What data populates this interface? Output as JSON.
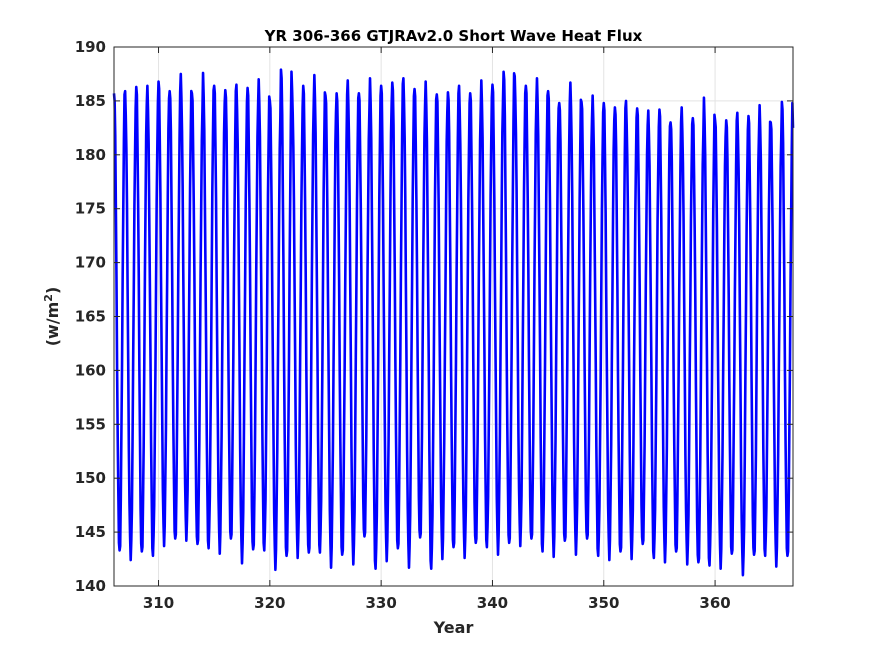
{
  "chart_data": {
    "type": "line",
    "title": "YR 306-366 GTJRAv2.0 Short Wave Heat Flux",
    "xlabel": "Year",
    "ylabel_main": "(w/m",
    "ylabel_sup": "2",
    "ylabel_close": ")",
    "xlim": [
      306,
      367
    ],
    "ylim": [
      140,
      190
    ],
    "xticks": [
      310,
      320,
      330,
      340,
      350,
      360
    ],
    "yticks": [
      140,
      145,
      150,
      155,
      160,
      165,
      170,
      175,
      180,
      185,
      190
    ],
    "grid": true,
    "line_color": "#0000ff",
    "series": [
      {
        "x_start": 306,
        "x_end": 367,
        "cycles_per_year": 1,
        "annual_maxima": [
          186.3,
          185.6,
          186.6,
          185.8,
          186.8,
          186.5,
          187.2,
          186.0,
          187.0,
          186.4,
          186.6,
          186.2,
          186.5,
          186.4,
          185.0,
          188.5,
          185.7,
          186.7,
          186.8,
          185.5,
          186.3,
          186.6,
          186.0,
          186.5,
          186.4,
          187.3,
          186.8,
          186.4,
          186.2,
          185.6,
          186.4,
          186.1,
          186.0,
          186.3,
          186.5,
          188.3,
          187.0,
          186.7,
          186.5,
          185.9,
          185.4,
          186.4,
          185.2,
          184.9,
          184.8,
          185.0,
          184.7,
          184.6,
          183.5,
          184.2,
          183.6,
          184.1,
          183.7,
          184.7,
          183.2,
          183.8,
          183.6,
          183.9,
          184.0,
          183.0,
          185.5
        ],
        "annual_minima": [
          143.0,
          142.7,
          142.6,
          142.8,
          144.3,
          144.1,
          144.5,
          143.3,
          143.5,
          143.6,
          144.1,
          142.4,
          142.8,
          143.3,
          142.1,
          142.5,
          142.9,
          142.5,
          143.1,
          142.3,
          142.6,
          142.3,
          144.0,
          141.6,
          142.9,
          143.2,
          142.0,
          143.9,
          141.6,
          143.1,
          143.3,
          142.9,
          143.4,
          143.6,
          143.5,
          143.7,
          144.0,
          143.8,
          143.2,
          143.3,
          143.9,
          143.2,
          143.8,
          142.8,
          143.0,
          142.9,
          142.8,
          143.3,
          142.6,
          142.8,
          142.9,
          142.3,
          141.6,
          141.9,
          142.2,
          142.7,
          141.3,
          142.3,
          142.8,
          142.4,
          142.5
        ]
      }
    ]
  }
}
